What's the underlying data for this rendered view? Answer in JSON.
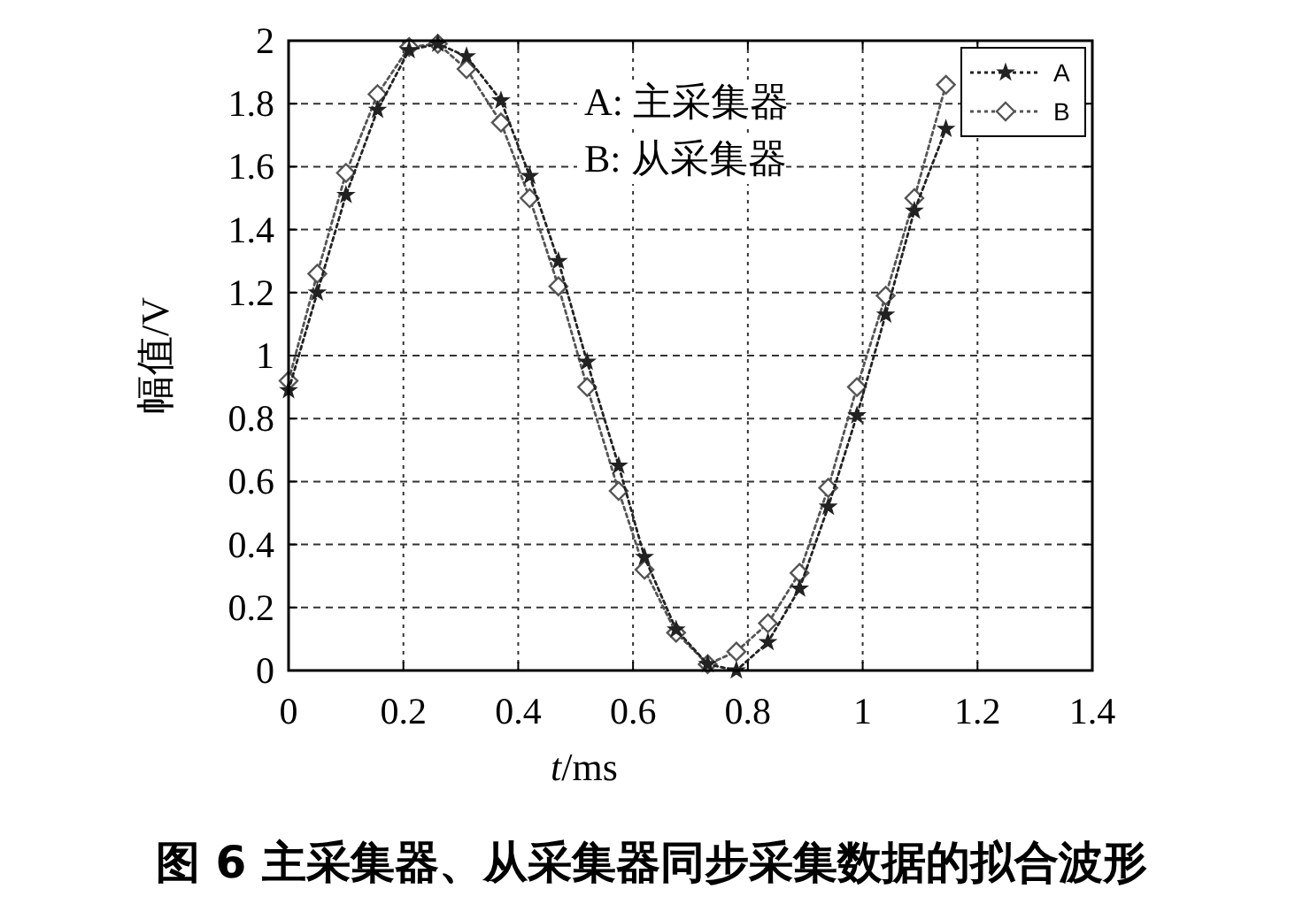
{
  "chart_data": {
    "type": "line",
    "title": "图 6  主采集器、从采集器同步采集数据的拟合波形",
    "xlabel": "*t*/ms",
    "ylabel": "幅值/V",
    "annotations": [
      "A: 主采集器",
      "B: 从采集器"
    ],
    "x": [
      0,
      0.05,
      0.1,
      0.155,
      0.21,
      0.26,
      0.31,
      0.37,
      0.42,
      0.47,
      0.52,
      0.575,
      0.62,
      0.675,
      0.73,
      0.78,
      0.835,
      0.89,
      0.94,
      0.99,
      1.04,
      1.09,
      1.145
    ],
    "series": [
      {
        "name": "A",
        "color": "#222222",
        "marker": "star",
        "line_style": "dotted",
        "values": [
          0.89,
          1.2,
          1.51,
          1.78,
          1.97,
          1.99,
          1.95,
          1.81,
          1.57,
          1.3,
          0.98,
          0.65,
          0.36,
          0.13,
          0.02,
          0.0,
          0.09,
          0.26,
          0.52,
          0.81,
          1.13,
          1.46,
          1.72
        ]
      },
      {
        "name": "B",
        "color": "#555555",
        "marker": "diamond",
        "line_style": "dotted",
        "values": [
          0.92,
          1.26,
          1.58,
          1.83,
          1.98,
          1.99,
          1.91,
          1.74,
          1.5,
          1.22,
          0.9,
          0.57,
          0.32,
          0.12,
          0.02,
          0.06,
          0.15,
          0.31,
          0.58,
          0.9,
          1.19,
          1.5,
          1.86
        ]
      }
    ],
    "xlim": [
      0,
      1.4
    ],
    "xticks": [
      0,
      0.2,
      0.4,
      0.6,
      0.8,
      1,
      1.2,
      1.4
    ],
    "ylim": [
      0,
      2
    ],
    "yticks": [
      0,
      0.2,
      0.4,
      0.6,
      0.8,
      1,
      1.2,
      1.4,
      1.6,
      1.8,
      2
    ],
    "grid": true,
    "legend": "top right"
  }
}
